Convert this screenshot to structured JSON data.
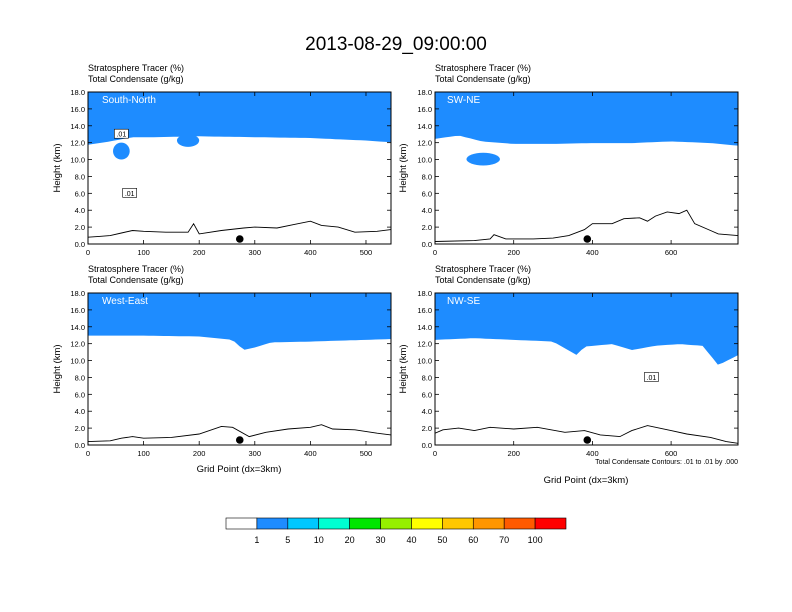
{
  "figure": {
    "title": "2013-08-29_09:00:00",
    "contour_note": "Total Condensate Contours: .01 to .01 by .000",
    "colorbar": {
      "labels": [
        "1",
        "5",
        "10",
        "20",
        "30",
        "40",
        "50",
        "60",
        "70",
        "100"
      ],
      "colors": [
        "#ffffff",
        "#1e8cff",
        "#00c8ff",
        "#00ffd2",
        "#00e600",
        "#96f000",
        "#ffff00",
        "#ffc800",
        "#ff9600",
        "#ff5a00",
        "#ff0000"
      ]
    },
    "colors": {
      "red": "#ff0000",
      "orange": "#ff5a00",
      "yellow": "#ffff00",
      "green": "#00e600",
      "blue": "#1e8cff"
    }
  },
  "chart_data": [
    {
      "type": "heatmap",
      "label": "South-North",
      "title_line1": "Stratosphere Tracer   (%)",
      "title_line2": "Total Condensate   (g/kg)",
      "xlabel": "",
      "ylabel": "Height (km)",
      "xlim": [
        0,
        545
      ],
      "ylim": [
        0,
        18
      ],
      "xticks": [
        0,
        100,
        200,
        300,
        400,
        500
      ],
      "yticks": [
        "0.0",
        "2.0",
        "4.0",
        "6.0",
        "8.0",
        "10.0",
        "12.0",
        "14.0",
        "16.0",
        "18.0"
      ],
      "tracer_base_km": [
        [
          0,
          12.1
        ],
        [
          40,
          12.5
        ],
        [
          80,
          13.0
        ],
        [
          120,
          13.0
        ],
        [
          200,
          13.1
        ],
        [
          300,
          13.0
        ],
        [
          400,
          12.9
        ],
        [
          500,
          12.6
        ],
        [
          545,
          12.4
        ]
      ],
      "blue_patches": [
        {
          "x": [
            160,
            200
          ],
          "y": [
            11.5,
            13.0
          ]
        },
        {
          "x": [
            45,
            75
          ],
          "y": [
            10.0,
            12.0
          ]
        }
      ],
      "terrain_km": [
        [
          0,
          0.8
        ],
        [
          20,
          0.9
        ],
        [
          40,
          1.0
        ],
        [
          60,
          1.3
        ],
        [
          80,
          1.6
        ],
        [
          100,
          1.5
        ],
        [
          140,
          1.4
        ],
        [
          180,
          1.4
        ],
        [
          190,
          2.4
        ],
        [
          200,
          1.2
        ],
        [
          240,
          1.6
        ],
        [
          280,
          1.9
        ],
        [
          300,
          2.0
        ],
        [
          340,
          1.9
        ],
        [
          370,
          2.3
        ],
        [
          400,
          2.7
        ],
        [
          420,
          2.2
        ],
        [
          450,
          2.0
        ],
        [
          480,
          1.4
        ],
        [
          520,
          1.5
        ],
        [
          545,
          1.7
        ]
      ],
      "point_x": 273,
      "contour_labels": [
        {
          "text": ".01",
          "x": 60,
          "y": 13.0
        },
        {
          "text": ".01",
          "x": 75,
          "y": 6.0
        }
      ]
    },
    {
      "type": "heatmap",
      "label": "SW-NE",
      "title_line1": "Stratosphere Tracer   (%)",
      "title_line2": "Total Condensate   (g/kg)",
      "xlabel": "",
      "ylabel": "Height (km)",
      "xlim": [
        0,
        770
      ],
      "ylim": [
        0,
        18
      ],
      "xticks": [
        0,
        200,
        400,
        600
      ],
      "yticks": [
        "0.0",
        "2.0",
        "4.0",
        "6.0",
        "8.0",
        "10.0",
        "12.0",
        "14.0",
        "16.0",
        "18.0"
      ],
      "tracer_base_km": [
        [
          0,
          12.8
        ],
        [
          60,
          13.2
        ],
        [
          120,
          12.5
        ],
        [
          200,
          12.2
        ],
        [
          300,
          12.2
        ],
        [
          400,
          12.3
        ],
        [
          500,
          12.3
        ],
        [
          600,
          12.5
        ],
        [
          700,
          12.3
        ],
        [
          770,
          12.0
        ]
      ],
      "blue_patches": [
        {
          "x": [
            80,
            165
          ],
          "y": [
            9.3,
            10.8
          ]
        }
      ],
      "terrain_km": [
        [
          0,
          0.3
        ],
        [
          100,
          0.4
        ],
        [
          140,
          0.6
        ],
        [
          150,
          1.1
        ],
        [
          180,
          0.6
        ],
        [
          250,
          0.6
        ],
        [
          300,
          0.7
        ],
        [
          340,
          1.0
        ],
        [
          380,
          1.7
        ],
        [
          400,
          2.4
        ],
        [
          450,
          2.4
        ],
        [
          480,
          3.0
        ],
        [
          520,
          3.1
        ],
        [
          540,
          2.7
        ],
        [
          560,
          3.3
        ],
        [
          590,
          3.8
        ],
        [
          620,
          3.6
        ],
        [
          640,
          4.0
        ],
        [
          660,
          2.4
        ],
        [
          700,
          1.6
        ],
        [
          720,
          1.2
        ],
        [
          770,
          1.0
        ]
      ],
      "point_x": 387,
      "contour_labels": []
    },
    {
      "type": "heatmap",
      "label": "West-East",
      "title_line1": "Stratosphere Tracer   (%)",
      "title_line2": "Total Condensate   (g/kg)",
      "xlabel": "Grid Point (dx=3km)",
      "ylabel": "Height (km)",
      "xlim": [
        0,
        545
      ],
      "ylim": [
        0,
        18
      ],
      "xticks": [
        0,
        100,
        200,
        300,
        400,
        500
      ],
      "yticks": [
        "0.0",
        "2.0",
        "4.0",
        "6.0",
        "8.0",
        "10.0",
        "12.0",
        "14.0",
        "16.0",
        "18.0"
      ],
      "tracer_base_km": [
        [
          0,
          13.3
        ],
        [
          100,
          13.3
        ],
        [
          200,
          13.2
        ],
        [
          260,
          12.8
        ],
        [
          280,
          11.6
        ],
        [
          300,
          11.9
        ],
        [
          330,
          12.5
        ],
        [
          400,
          12.6
        ],
        [
          500,
          12.8
        ],
        [
          545,
          12.9
        ]
      ],
      "blue_patches": [],
      "terrain_km": [
        [
          0,
          0.4
        ],
        [
          40,
          0.5
        ],
        [
          60,
          0.8
        ],
        [
          80,
          1.0
        ],
        [
          100,
          0.8
        ],
        [
          150,
          0.9
        ],
        [
          200,
          1.3
        ],
        [
          240,
          2.2
        ],
        [
          260,
          2.1
        ],
        [
          290,
          1.0
        ],
        [
          320,
          1.5
        ],
        [
          360,
          1.9
        ],
        [
          400,
          2.1
        ],
        [
          420,
          2.4
        ],
        [
          440,
          1.9
        ],
        [
          480,
          1.8
        ],
        [
          520,
          1.4
        ],
        [
          545,
          1.2
        ]
      ],
      "point_x": 273,
      "contour_labels": []
    },
    {
      "type": "heatmap",
      "label": "NW-SE",
      "title_line1": "Stratosphere Tracer   (%)",
      "title_line2": "Total Condensate   (g/kg)",
      "xlabel": "Grid Point (dx=3km)",
      "ylabel": "Height (km)",
      "xlim": [
        0,
        770
      ],
      "ylim": [
        0,
        18
      ],
      "xticks": [
        0,
        200,
        400,
        600
      ],
      "yticks": [
        "0.0",
        "2.0",
        "4.0",
        "6.0",
        "8.0",
        "10.0",
        "12.0",
        "14.0",
        "16.0",
        "18.0"
      ],
      "tracer_base_km": [
        [
          0,
          12.8
        ],
        [
          100,
          13.0
        ],
        [
          200,
          12.8
        ],
        [
          300,
          12.6
        ],
        [
          360,
          11.0
        ],
        [
          380,
          12.0
        ],
        [
          450,
          12.3
        ],
        [
          500,
          11.6
        ],
        [
          560,
          12.1
        ],
        [
          620,
          12.3
        ],
        [
          680,
          12.1
        ],
        [
          720,
          9.8
        ],
        [
          770,
          11.0
        ]
      ],
      "blue_patches": [],
      "terrain_km": [
        [
          0,
          1.4
        ],
        [
          20,
          1.8
        ],
        [
          60,
          2.0
        ],
        [
          100,
          1.7
        ],
        [
          140,
          2.1
        ],
        [
          200,
          1.9
        ],
        [
          260,
          2.1
        ],
        [
          330,
          1.5
        ],
        [
          380,
          1.7
        ],
        [
          420,
          1.2
        ],
        [
          470,
          1.0
        ],
        [
          500,
          1.7
        ],
        [
          540,
          2.3
        ],
        [
          600,
          1.7
        ],
        [
          640,
          1.3
        ],
        [
          700,
          0.9
        ],
        [
          740,
          0.4
        ],
        [
          770,
          0.2
        ]
      ],
      "point_x": 387,
      "contour_labels": [
        {
          "text": ".01",
          "x": 550,
          "y": 8.0
        }
      ]
    }
  ]
}
